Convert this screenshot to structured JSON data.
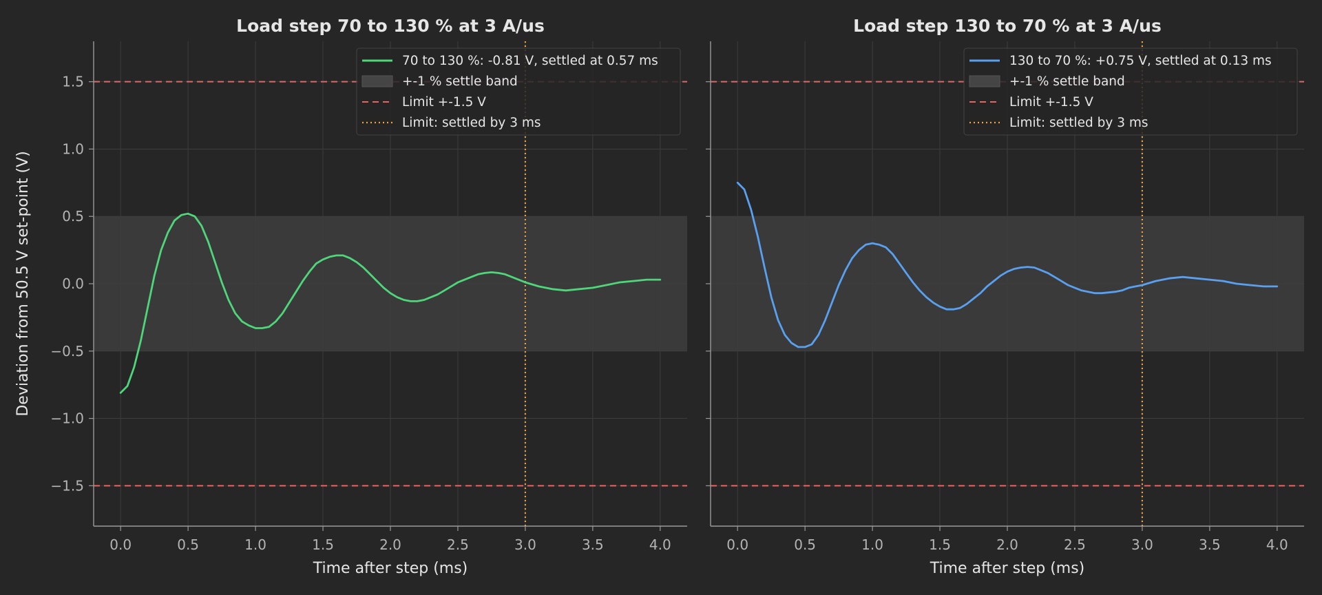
{
  "figure": {
    "ylabel": "Deviation from 50.5 V set-point (V)"
  },
  "colors": {
    "background": "#262626",
    "band": "#3a3a3a",
    "limit": "#e86464",
    "settle_limit": "#f0a040",
    "grid": "#3d3d3d",
    "axis": "#9a9a9a",
    "text": "#e6e6e6",
    "tick_text": "#b4b4b4"
  },
  "chart_data": [
    {
      "type": "line",
      "title": "Load step 70 to 130 % at 3 A/us",
      "xlabel": "Time after step (ms)",
      "ylabel": "Deviation from 50.5 V set-point (V)",
      "xlim": [
        -0.2,
        4.2
      ],
      "ylim": [
        -1.8,
        1.8
      ],
      "xticks": [
        0.0,
        0.5,
        1.0,
        1.5,
        2.0,
        2.5,
        3.0,
        3.5,
        4.0
      ],
      "xtick_labels": [
        "0.0",
        "0.5",
        "1.0",
        "1.5",
        "2.0",
        "2.5",
        "3.0",
        "3.5",
        "4.0"
      ],
      "yticks": [
        -1.5,
        -1.0,
        -0.5,
        0.0,
        0.5,
        1.0,
        1.5
      ],
      "ytick_labels": [
        "−1.5",
        "−1.0",
        "−0.5",
        "0.0",
        "0.5",
        "1.0",
        "1.5"
      ],
      "grid": true,
      "legend_position": "top-right",
      "settle_band": [
        -0.5,
        0.5
      ],
      "limit_levels": [
        1.5,
        -1.5
      ],
      "settle_time_limit": 3.0,
      "series": [
        {
          "name": "70 to 130 %: -0.81 V, settled at 0.57 ms",
          "color": "#4fd67a",
          "x": [
            0.0,
            0.05,
            0.1,
            0.15,
            0.2,
            0.25,
            0.3,
            0.35,
            0.4,
            0.45,
            0.5,
            0.55,
            0.6,
            0.65,
            0.7,
            0.75,
            0.8,
            0.85,
            0.9,
            0.95,
            1.0,
            1.05,
            1.1,
            1.15,
            1.2,
            1.25,
            1.3,
            1.35,
            1.4,
            1.45,
            1.5,
            1.55,
            1.6,
            1.65,
            1.7,
            1.75,
            1.8,
            1.85,
            1.9,
            1.95,
            2.0,
            2.05,
            2.1,
            2.15,
            2.2,
            2.25,
            2.3,
            2.35,
            2.4,
            2.45,
            2.5,
            2.55,
            2.6,
            2.65,
            2.7,
            2.75,
            2.8,
            2.85,
            2.9,
            2.95,
            3.0,
            3.1,
            3.2,
            3.3,
            3.4,
            3.5,
            3.6,
            3.7,
            3.8,
            3.9,
            4.0
          ],
          "y": [
            -0.81,
            -0.76,
            -0.62,
            -0.42,
            -0.18,
            0.06,
            0.25,
            0.38,
            0.47,
            0.51,
            0.52,
            0.5,
            0.43,
            0.31,
            0.16,
            0.01,
            -0.12,
            -0.22,
            -0.28,
            -0.31,
            -0.33,
            -0.33,
            -0.32,
            -0.28,
            -0.22,
            -0.14,
            -0.06,
            0.02,
            0.09,
            0.15,
            0.18,
            0.2,
            0.21,
            0.21,
            0.19,
            0.16,
            0.12,
            0.07,
            0.02,
            -0.03,
            -0.07,
            -0.1,
            -0.12,
            -0.13,
            -0.13,
            -0.12,
            -0.1,
            -0.08,
            -0.05,
            -0.02,
            0.01,
            0.03,
            0.05,
            0.07,
            0.08,
            0.085,
            0.08,
            0.07,
            0.05,
            0.03,
            0.01,
            -0.02,
            -0.04,
            -0.05,
            -0.04,
            -0.03,
            -0.01,
            0.01,
            0.02,
            0.03,
            0.03
          ]
        }
      ],
      "legend": [
        {
          "label": "70 to 130 %: -0.81 V, settled at 0.57 ms",
          "kind": "line",
          "color": "#4fd67a"
        },
        {
          "label": "+-1 % settle band",
          "kind": "patch",
          "color": "#454545"
        },
        {
          "label": "Limit +-1.5 V",
          "kind": "dashed",
          "color": "#e86464"
        },
        {
          "label": "Limit: settled by 3 ms",
          "kind": "dotted",
          "color": "#f0a040"
        }
      ]
    },
    {
      "type": "line",
      "title": "Load step 130 to 70 % at 3 A/us",
      "xlabel": "Time after step (ms)",
      "ylabel": "",
      "xlim": [
        -0.2,
        4.2
      ],
      "ylim": [
        -1.8,
        1.8
      ],
      "xticks": [
        0.0,
        0.5,
        1.0,
        1.5,
        2.0,
        2.5,
        3.0,
        3.5,
        4.0
      ],
      "xtick_labels": [
        "0.0",
        "0.5",
        "1.0",
        "1.5",
        "2.0",
        "2.5",
        "3.0",
        "3.5",
        "4.0"
      ],
      "yticks": [
        -1.5,
        -1.0,
        -0.5,
        0.0,
        0.5,
        1.0,
        1.5
      ],
      "ytick_labels": [],
      "grid": true,
      "legend_position": "top-right",
      "settle_band": [
        -0.5,
        0.5
      ],
      "limit_levels": [
        1.5,
        -1.5
      ],
      "settle_time_limit": 3.0,
      "series": [
        {
          "name": "130 to 70 %: +0.75 V, settled at 0.13 ms",
          "color": "#5aa0f0",
          "x": [
            0.0,
            0.05,
            0.1,
            0.15,
            0.2,
            0.25,
            0.3,
            0.35,
            0.4,
            0.45,
            0.5,
            0.55,
            0.6,
            0.65,
            0.7,
            0.75,
            0.8,
            0.85,
            0.9,
            0.95,
            1.0,
            1.05,
            1.1,
            1.15,
            1.2,
            1.25,
            1.3,
            1.35,
            1.4,
            1.45,
            1.5,
            1.55,
            1.6,
            1.65,
            1.7,
            1.75,
            1.8,
            1.85,
            1.9,
            1.95,
            2.0,
            2.05,
            2.1,
            2.15,
            2.2,
            2.25,
            2.3,
            2.35,
            2.4,
            2.45,
            2.5,
            2.55,
            2.6,
            2.65,
            2.7,
            2.75,
            2.8,
            2.85,
            2.9,
            2.95,
            3.0,
            3.1,
            3.2,
            3.3,
            3.4,
            3.5,
            3.6,
            3.7,
            3.8,
            3.9,
            4.0
          ],
          "y": [
            0.75,
            0.7,
            0.55,
            0.35,
            0.12,
            -0.1,
            -0.27,
            -0.38,
            -0.44,
            -0.47,
            -0.47,
            -0.45,
            -0.38,
            -0.27,
            -0.14,
            -0.01,
            0.1,
            0.19,
            0.25,
            0.29,
            0.3,
            0.29,
            0.27,
            0.22,
            0.15,
            0.08,
            0.01,
            -0.05,
            -0.1,
            -0.14,
            -0.17,
            -0.19,
            -0.19,
            -0.18,
            -0.15,
            -0.11,
            -0.07,
            -0.02,
            0.02,
            0.06,
            0.09,
            0.11,
            0.12,
            0.125,
            0.12,
            0.1,
            0.08,
            0.05,
            0.02,
            -0.01,
            -0.03,
            -0.05,
            -0.06,
            -0.07,
            -0.07,
            -0.065,
            -0.06,
            -0.05,
            -0.03,
            -0.02,
            -0.01,
            0.02,
            0.04,
            0.05,
            0.04,
            0.03,
            0.02,
            0.0,
            -0.01,
            -0.02,
            -0.02
          ]
        }
      ],
      "legend": [
        {
          "label": "130 to 70 %: +0.75 V, settled at 0.13 ms",
          "kind": "line",
          "color": "#5aa0f0"
        },
        {
          "label": "+-1 % settle band",
          "kind": "patch",
          "color": "#454545"
        },
        {
          "label": "Limit +-1.5 V",
          "kind": "dashed",
          "color": "#e86464"
        },
        {
          "label": "Limit: settled by 3 ms",
          "kind": "dotted",
          "color": "#f0a040"
        }
      ]
    }
  ]
}
